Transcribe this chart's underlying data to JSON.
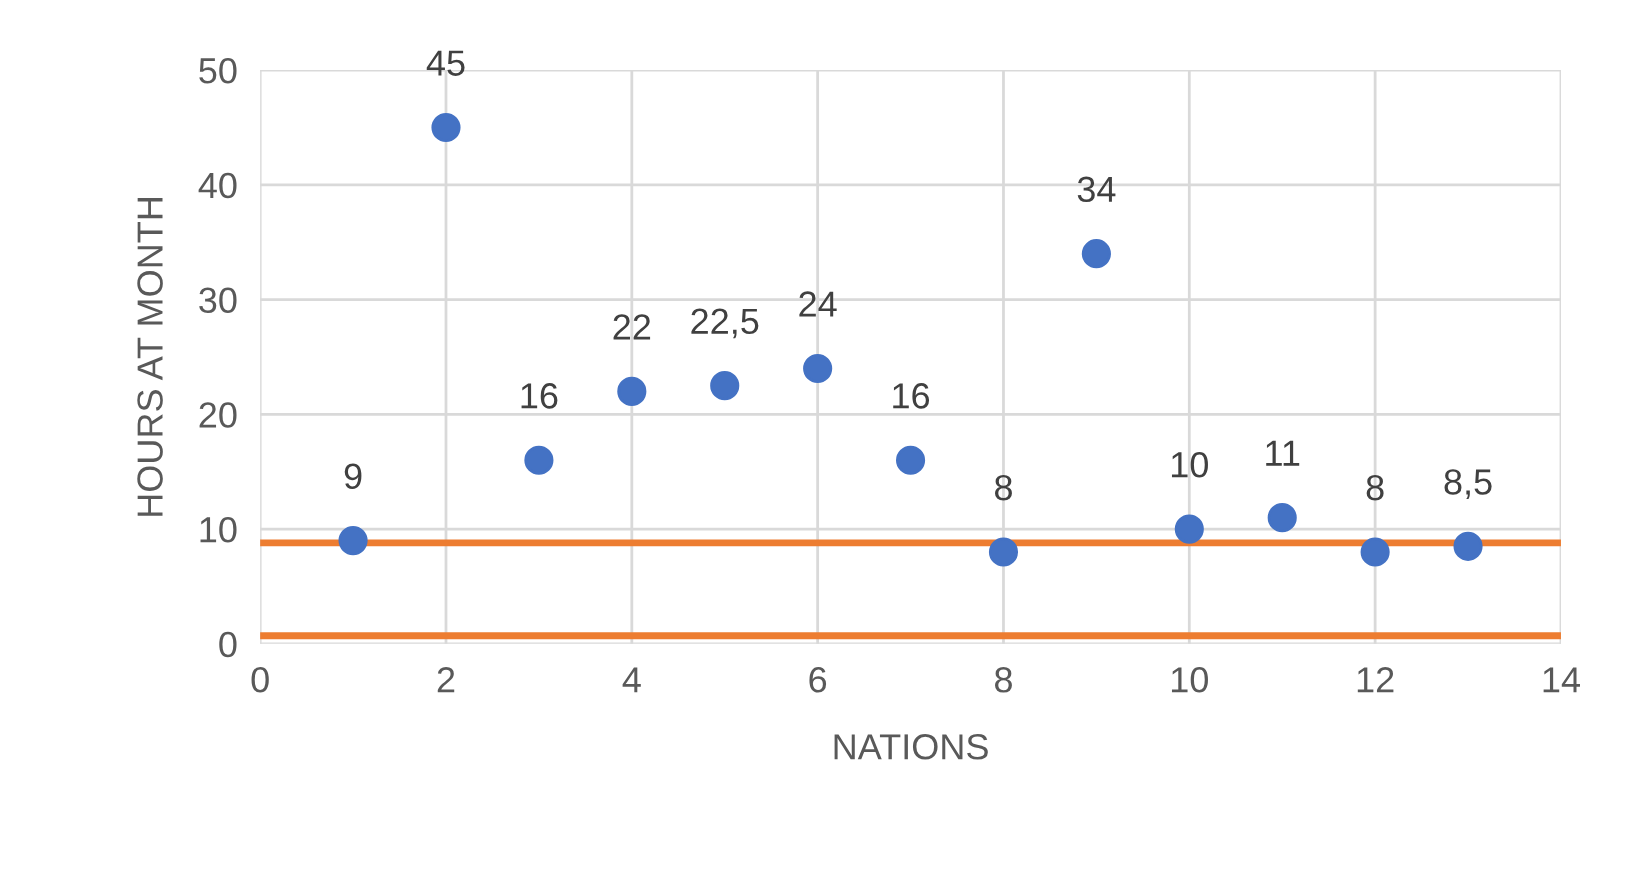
{
  "chart_data": {
    "type": "scatter",
    "xlabel": "NATIONS",
    "ylabel": "HOURS AT MONTH",
    "x": [
      1,
      2,
      3,
      4,
      5,
      6,
      7,
      8,
      9,
      10,
      11,
      12,
      13
    ],
    "series": [
      {
        "color": "#4472c4",
        "values": [
          9,
          45,
          16,
          22,
          22.5,
          24,
          16,
          8,
          34,
          10,
          11,
          8,
          8.5
        ]
      }
    ],
    "value_labels": [
      "9",
      "45",
      "16",
      "22",
      "22,5",
      "24",
      "16",
      "8",
      "34",
      "10",
      "11",
      "8",
      "8,5"
    ],
    "xlim": [
      0,
      14
    ],
    "xticks": [
      0,
      2,
      4,
      6,
      8,
      10,
      12,
      14
    ],
    "ylim": [
      0,
      50
    ],
    "yticks": [
      0,
      10,
      20,
      30,
      40,
      50
    ],
    "ref_lines": [
      {
        "axis": "y",
        "value": 8.8,
        "label": null,
        "color": "#ed7d31"
      },
      {
        "axis": "y",
        "value": 0.7,
        "label": null,
        "color": "#ed7d31"
      }
    ],
    "grid": true,
    "marker": "circle"
  }
}
